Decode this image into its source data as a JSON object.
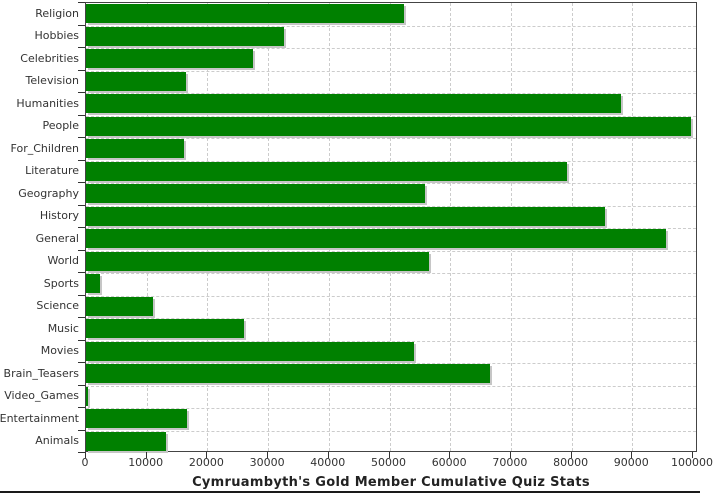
{
  "chart_data": {
    "type": "bar",
    "orientation": "horizontal",
    "title": "Cymruambyth's Gold Member Cumulative Quiz Stats",
    "categories": [
      "Religion",
      "Hobbies",
      "Celebrities",
      "Television",
      "Humanities",
      "People",
      "For_Children",
      "Literature",
      "Geography",
      "History",
      "General",
      "World",
      "Sports",
      "Science",
      "Music",
      "Movies",
      "Brain_Teasers",
      "Video_Games",
      "Entertainment",
      "Animals"
    ],
    "values": [
      52400,
      32600,
      27500,
      16500,
      88200,
      99700,
      16200,
      79300,
      55800,
      85500,
      95600,
      56500,
      2300,
      11000,
      26100,
      54100,
      66500,
      400,
      16600,
      13100
    ],
    "xlim": [
      0,
      100000
    ],
    "x_ticks": [
      "0",
      "10000",
      "20000",
      "30000",
      "40000",
      "50000",
      "60000",
      "70000",
      "80000",
      "90000",
      "100000"
    ],
    "xlabel": "",
    "ylabel": "",
    "legend": "none",
    "grid": "dashed vertical value lines and dashed horizontal category boundary lines",
    "colors": {
      "bar": "#008000",
      "bar_shadow": "#c6c6c6",
      "gridline": "#cccccc",
      "plot_border": "#444444",
      "tick": "#333333",
      "label": "#333333",
      "title": "#222222",
      "background": "#ffffff",
      "bottom_rule": "#1a1a1a"
    }
  }
}
